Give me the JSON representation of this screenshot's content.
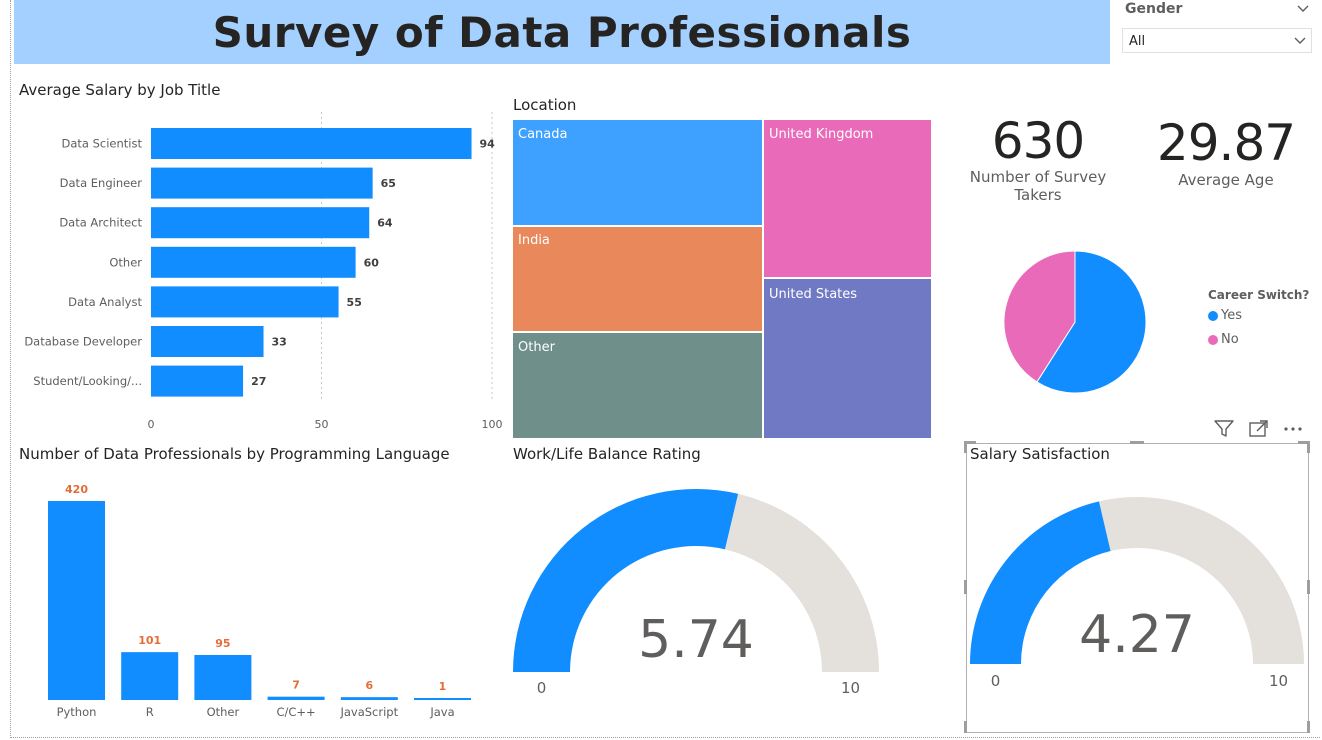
{
  "report": {
    "title": "Survey of Data Professionals"
  },
  "slicer": {
    "label": "Gender",
    "value": "All"
  },
  "cards": {
    "survey_takers": {
      "value": "630",
      "label": "Number of Survey Takers"
    },
    "average_age": {
      "value": "29.87",
      "label": "Average Age"
    }
  },
  "header_icons": [
    "filter-icon",
    "focus-mode-icon",
    "more-options-icon"
  ],
  "colors": {
    "blue": "#118dff",
    "pink": "#e96ab9",
    "orange": "#e8885b",
    "teal": "#6f8f8a",
    "purple": "#7079c4",
    "canada": "#3ea0ff",
    "gauge_track": "#e4e0db",
    "banner": "#a3d0ff",
    "data_label_orange": "#e66c37"
  },
  "chart_data": [
    {
      "id": "salary",
      "type": "bar",
      "orientation": "horizontal",
      "title": "Average Salary by Job Title",
      "categories": [
        "Data Scientist",
        "Data Engineer",
        "Data Architect",
        "Other",
        "Data Analyst",
        "Database Developer",
        "Student/Looking/..."
      ],
      "values": [
        94,
        65,
        64,
        60,
        55,
        33,
        27
      ],
      "xlim": [
        0,
        100
      ],
      "xticks": [
        "0",
        "50",
        "100"
      ],
      "grid": true
    },
    {
      "id": "location",
      "type": "treemap",
      "title": "Location",
      "items": [
        {
          "name": "Canada",
          "color": "#3ea0ff"
        },
        {
          "name": "United Kingdom",
          "color": "#e96ab9"
        },
        {
          "name": "India",
          "color": "#e8885b"
        },
        {
          "name": "United States",
          "color": "#7079c4"
        },
        {
          "name": "Other",
          "color": "#6f8f8a"
        }
      ]
    },
    {
      "id": "career_switch",
      "type": "pie",
      "legend_title": "Career Switch?",
      "legend_position": "right",
      "slices": [
        {
          "name": "Yes",
          "value": 0.59,
          "color": "#118dff"
        },
        {
          "name": "No",
          "value": 0.41,
          "color": "#e96ab9"
        }
      ]
    },
    {
      "id": "languages",
      "type": "bar",
      "orientation": "vertical",
      "title": "Number of Data Professionals by Programming Language",
      "categories": [
        "Python",
        "R",
        "Other",
        "C/C++",
        "JavaScript",
        "Java"
      ],
      "values": [
        420,
        101,
        95,
        7,
        6,
        1
      ]
    },
    {
      "id": "work_life",
      "type": "gauge",
      "title": "Work/Life Balance Rating",
      "value": 5.74,
      "value_label": "5.74",
      "min": 0,
      "max": 10,
      "min_label": "0",
      "max_label": "10"
    },
    {
      "id": "salary_satisfaction",
      "type": "gauge",
      "title": "Salary Satisfaction",
      "value": 4.27,
      "value_label": "4.27",
      "min": 0,
      "max": 10,
      "min_label": "0",
      "max_label": "10"
    }
  ]
}
